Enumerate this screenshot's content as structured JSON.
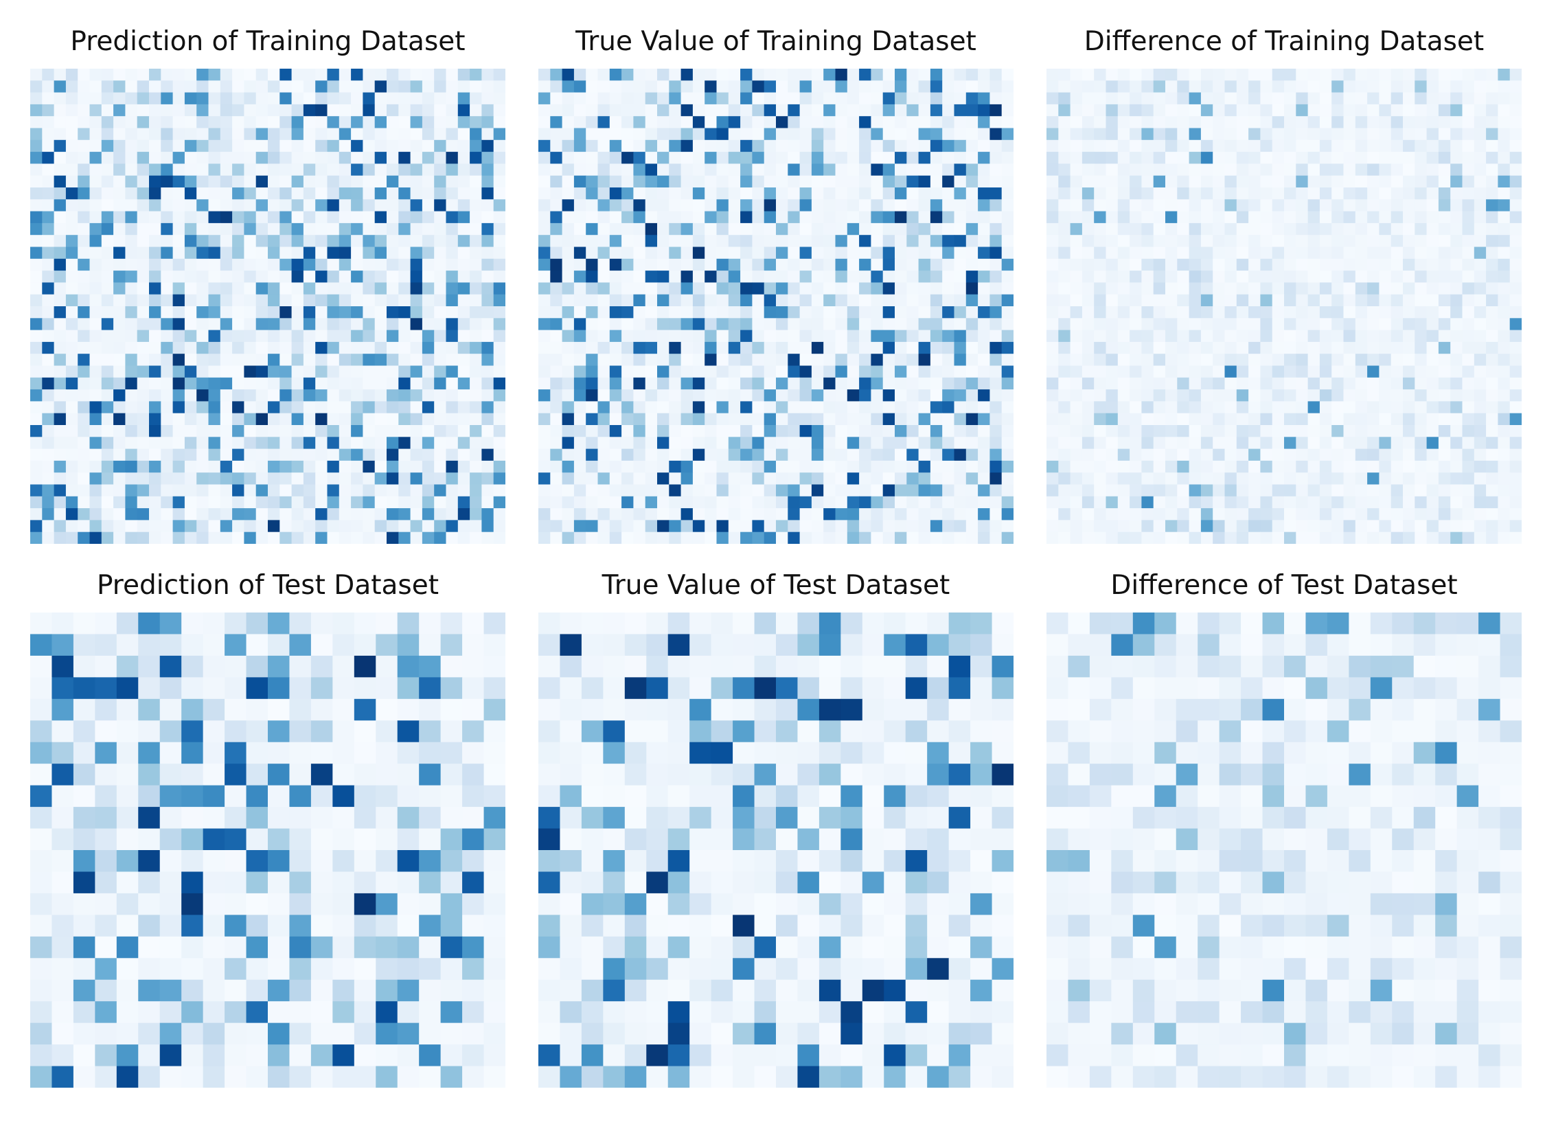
{
  "chart_data": [
    {
      "type": "heatmap",
      "title": "Prediction of Training Dataset",
      "rows": 40,
      "cols": 40,
      "colormap": "Blues",
      "vmin": 0,
      "vmax": 1,
      "grid": false,
      "axes_visible": false,
      "values_mode": "seeded-random",
      "seed": 101,
      "level_probs": [
        0.52,
        0.18,
        0.12,
        0.1,
        0.08
      ]
    },
    {
      "type": "heatmap",
      "title": "True Value of Training Dataset",
      "rows": 40,
      "cols": 40,
      "colormap": "Blues",
      "vmin": 0,
      "vmax": 1,
      "grid": false,
      "axes_visible": false,
      "values_mode": "seeded-random",
      "seed": 102,
      "level_probs": [
        0.58,
        0.12,
        0.1,
        0.1,
        0.1
      ]
    },
    {
      "type": "heatmap",
      "title": "Difference of Training Dataset",
      "rows": 40,
      "cols": 40,
      "colormap": "Blues",
      "vmin": 0,
      "vmax": 1,
      "grid": false,
      "axes_visible": false,
      "values_mode": "seeded-random",
      "seed": 103,
      "level_probs": [
        0.7,
        0.25,
        0.04,
        0.01,
        0.0
      ]
    },
    {
      "type": "heatmap",
      "title": "Prediction of Test Dataset",
      "rows": 22,
      "cols": 22,
      "colormap": "Blues",
      "vmin": 0,
      "vmax": 1,
      "grid": false,
      "axes_visible": false,
      "values_mode": "seeded-random",
      "seed": 201,
      "level_probs": [
        0.5,
        0.2,
        0.12,
        0.1,
        0.08
      ]
    },
    {
      "type": "heatmap",
      "title": "True Value of Test Dataset",
      "rows": 22,
      "cols": 22,
      "colormap": "Blues",
      "vmin": 0,
      "vmax": 1,
      "grid": false,
      "axes_visible": false,
      "values_mode": "seeded-random",
      "seed": 202,
      "level_probs": [
        0.55,
        0.15,
        0.12,
        0.1,
        0.08
      ]
    },
    {
      "type": "heatmap",
      "title": "Difference of Test Dataset",
      "rows": 22,
      "cols": 22,
      "colormap": "Blues",
      "vmin": 0,
      "vmax": 1,
      "grid": false,
      "axes_visible": false,
      "values_mode": "seeded-random",
      "seed": 203,
      "level_probs": [
        0.62,
        0.28,
        0.07,
        0.03,
        0.0
      ]
    }
  ],
  "colors": {
    "blues_ramp": [
      "#f7fbff",
      "#deebf7",
      "#c6dbef",
      "#9ecae1",
      "#6baed6",
      "#4292c6",
      "#2171b5",
      "#08519c",
      "#08306b"
    ]
  }
}
